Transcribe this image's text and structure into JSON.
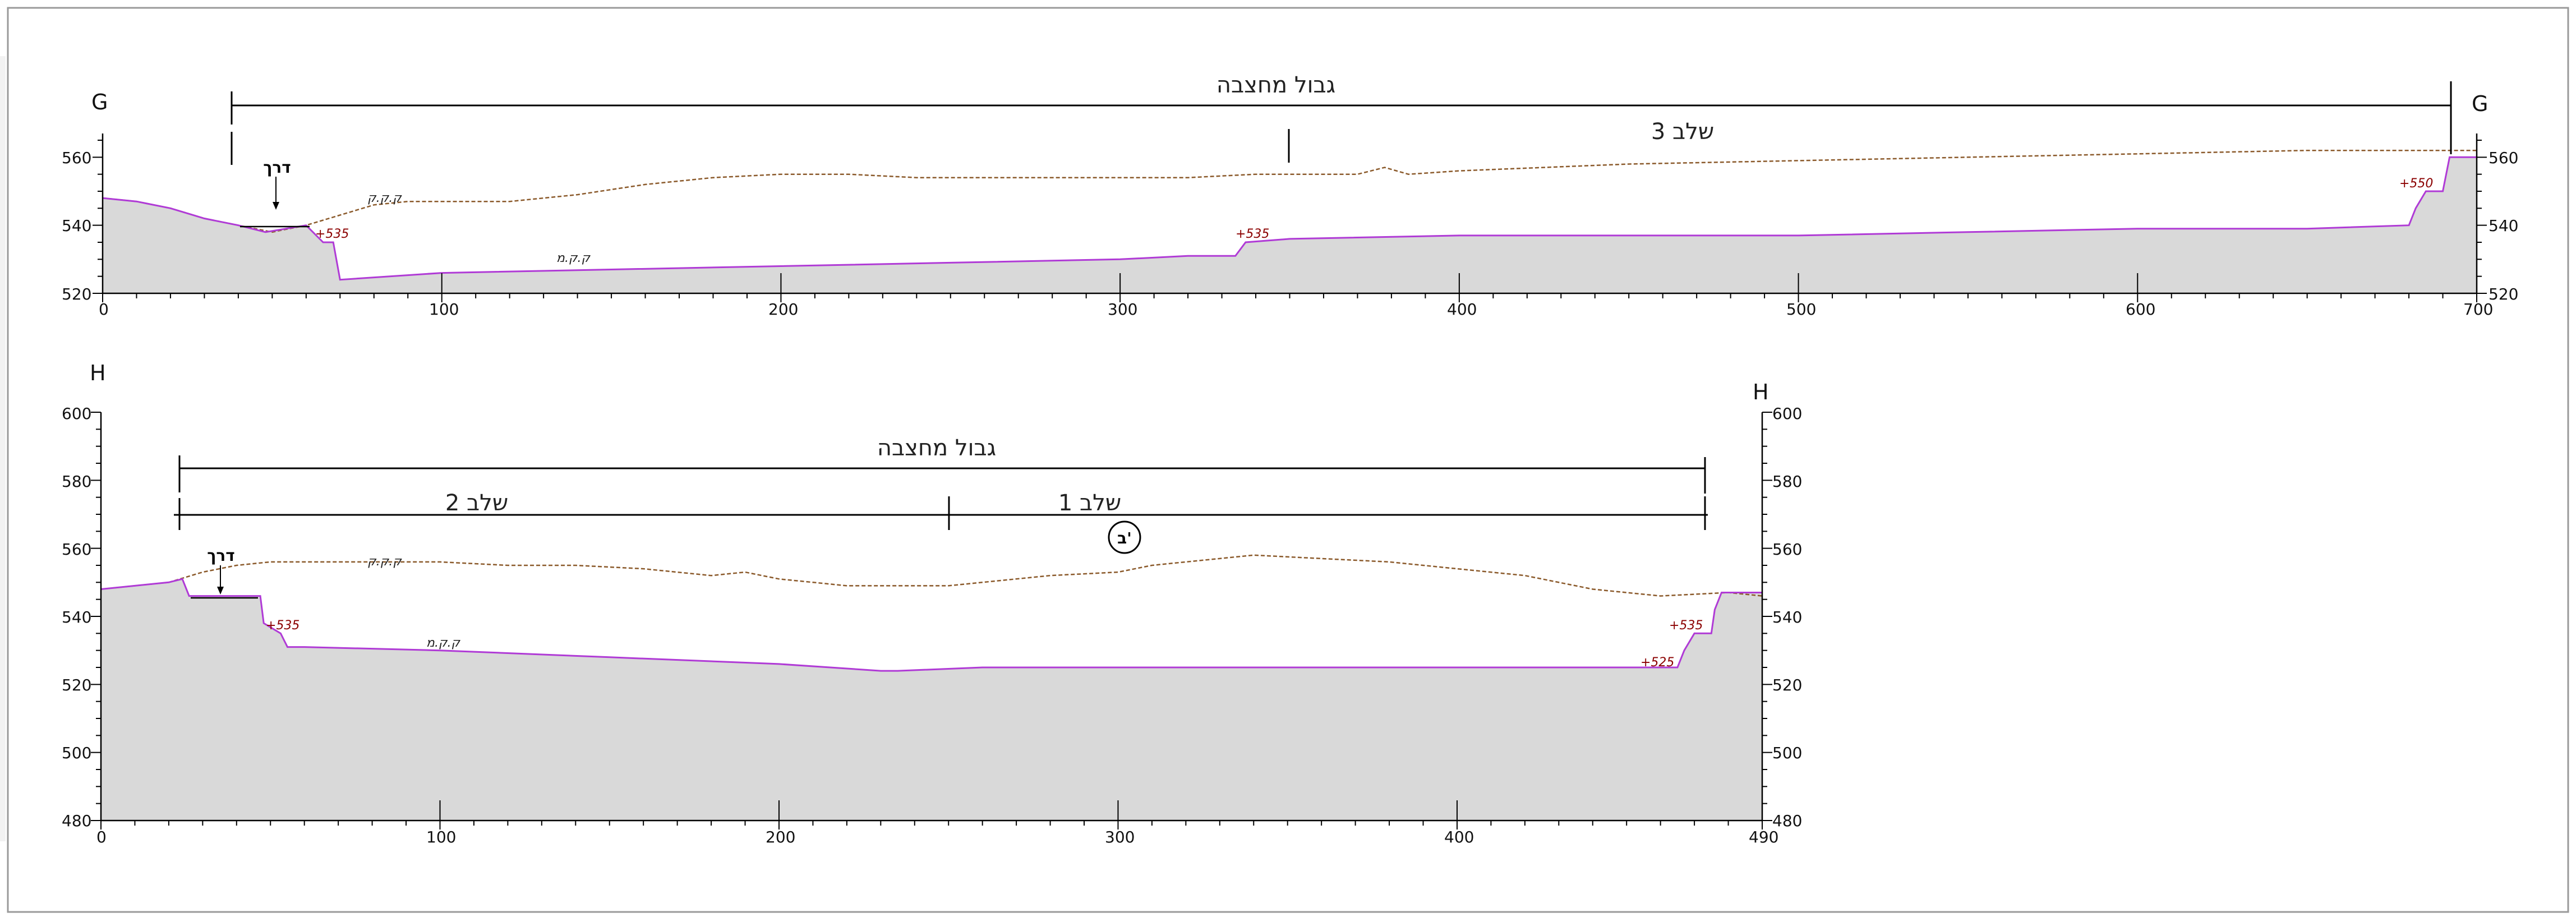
{
  "colors": {
    "ground_line": "#8b5a2b",
    "design_line": "#b03bd6",
    "fill": "#d9d9d9",
    "elevation_text": "#8b0000"
  },
  "sections": [
    {
      "id": "G",
      "label": "G",
      "x_ticks": [
        "0",
        "100",
        "200",
        "300",
        "400",
        "500",
        "600",
        "700"
      ],
      "y_ticks": [
        "520",
        "540",
        "560"
      ],
      "boundary_label": "גבול מחצבה",
      "stage_labels": [
        "שלב 3"
      ],
      "road_label": "דרך",
      "ground_labels": [
        "ק.ק.ק",
        "ק.ק.מ"
      ],
      "elevation_labels": [
        "+535",
        "+535",
        "+550"
      ]
    },
    {
      "id": "H",
      "label": "H",
      "x_ticks": [
        "0",
        "100",
        "200",
        "300",
        "400",
        "490"
      ],
      "y_ticks": [
        "480",
        "500",
        "520",
        "540",
        "560",
        "580",
        "600"
      ],
      "boundary_label": "גבול מחצבה",
      "stage_labels": [
        "שלב 2",
        "שלב 1"
      ],
      "circle_label": "ב'",
      "road_label": "דרך",
      "ground_labels": [
        "ק.ק.ק",
        "ק.ק.מ"
      ],
      "elevation_labels": [
        "+535",
        "+535",
        "+525"
      ]
    }
  ],
  "chart_data": [
    {
      "type": "area",
      "title": "G",
      "xlim": [
        0,
        700
      ],
      "ylim": [
        520,
        565
      ],
      "series": [
        {
          "name": "ק.ק.ק",
          "x": [
            0,
            10,
            20,
            30,
            40,
            50,
            60,
            70,
            80,
            90,
            100,
            120,
            140,
            160,
            180,
            200,
            220,
            240,
            260,
            280,
            300,
            320,
            340,
            350,
            360,
            370,
            378,
            385,
            400,
            450,
            500,
            550,
            600,
            650,
            690,
            700
          ],
          "y": [
            548,
            547,
            545,
            542,
            540,
            538,
            540,
            543,
            546,
            547,
            547,
            547,
            549,
            552,
            554,
            555,
            555,
            554,
            554,
            554,
            554,
            554,
            555,
            555,
            555,
            555,
            557,
            555,
            556,
            558,
            559,
            560,
            561,
            562,
            562,
            562
          ]
        },
        {
          "name": "ק.ק.מ",
          "x": [
            0,
            10,
            20,
            30,
            40,
            48,
            60,
            62,
            65,
            68,
            70,
            100,
            150,
            200,
            250,
            300,
            320,
            334,
            337,
            350,
            400,
            450,
            500,
            550,
            600,
            650,
            680,
            682,
            685,
            690,
            692,
            700
          ],
          "y": [
            548,
            547,
            545,
            542,
            540,
            538,
            540,
            538,
            535,
            535,
            524,
            526,
            527,
            528,
            529,
            530,
            531,
            531,
            535,
            536,
            537,
            537,
            537,
            538,
            539,
            539,
            540,
            545,
            550,
            550,
            560,
            560
          ]
        }
      ]
    },
    {
      "type": "area",
      "title": "H",
      "xlim": [
        0,
        490
      ],
      "ylim": [
        480,
        600
      ],
      "series": [
        {
          "name": "ק.ק.ק",
          "x": [
            0,
            10,
            20,
            30,
            40,
            50,
            60,
            80,
            100,
            120,
            140,
            160,
            180,
            190,
            200,
            210,
            220,
            240,
            250,
            260,
            280,
            300,
            310,
            320,
            340,
            360,
            380,
            400,
            420,
            440,
            460,
            480,
            490
          ],
          "y": [
            548,
            549,
            550,
            553,
            555,
            556,
            556,
            556,
            556,
            555,
            555,
            554,
            552,
            553,
            551,
            550,
            549,
            549,
            549,
            550,
            552,
            553,
            555,
            556,
            558,
            557,
            556,
            554,
            552,
            548,
            546,
            547,
            546
          ]
        },
        {
          "name": "ק.ק.מ",
          "x": [
            0,
            10,
            20,
            24,
            26,
            47,
            48,
            53,
            55,
            60,
            100,
            150,
            200,
            230,
            235,
            260,
            300,
            350,
            400,
            450,
            465,
            467,
            470,
            475,
            476,
            478,
            480,
            490
          ],
          "y": [
            548,
            549,
            550,
            551,
            546,
            546,
            538,
            535,
            531,
            531,
            530,
            528,
            526,
            524,
            524,
            525,
            525,
            525,
            525,
            525,
            525,
            530,
            535,
            535,
            542,
            547,
            547,
            547
          ]
        }
      ]
    }
  ]
}
